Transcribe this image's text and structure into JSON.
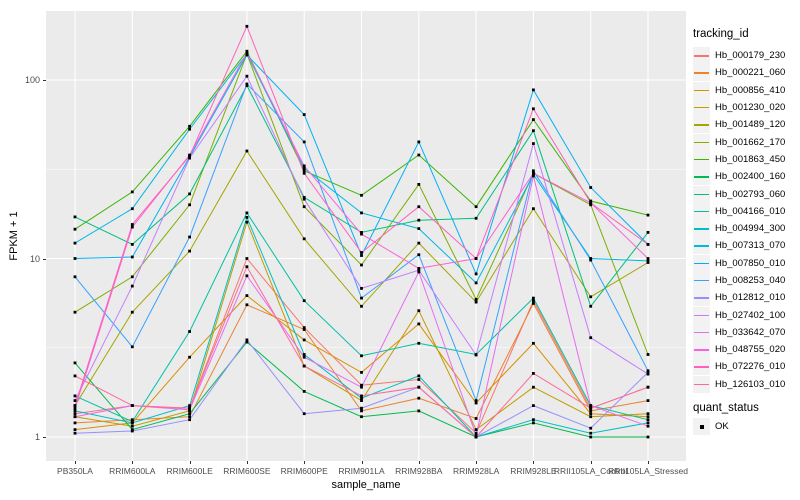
{
  "chart_data": {
    "type": "line",
    "title": "",
    "xlabel": "sample_name",
    "ylabel": "FPKM + 1",
    "y_scale": "log10",
    "y_ticks": [
      1,
      10,
      100
    ],
    "y_minor_ticks": [
      3.162,
      31.62
    ],
    "ylim": [
      0.73,
      240
    ],
    "grid": "on",
    "legend_position": "right",
    "point_shape": "black-square",
    "categories": [
      "PB350LA",
      "RRIM600LA",
      "RRIM600LE",
      "RRIM600SE",
      "RRIM600PE",
      "RRIM901LA",
      "RRIM928BA",
      "RRIM928LA",
      "RRIM928LE",
      "RRII105LA_Control",
      "RRII105LA_Stressed"
    ],
    "series": [
      {
        "name": "Hb_000179_230",
        "color": "#F8766D",
        "values": [
          1.35,
          1.5,
          1.45,
          10,
          4.1,
          1.95,
          2.1,
          1.05,
          5.8,
          1.45,
          1.9
        ]
      },
      {
        "name": "Hb_000221_060",
        "color": "#EA8331",
        "values": [
          1.2,
          1.25,
          1.3,
          5.5,
          4,
          1.4,
          1.65,
          1.27,
          5.6,
          1.4,
          1.6
        ]
      },
      {
        "name": "Hb_000856_410",
        "color": "#D89000",
        "values": [
          1.1,
          1.2,
          2.8,
          6.2,
          3.5,
          2.3,
          4.3,
          1.55,
          3.35,
          1.35,
          1.3
        ]
      },
      {
        "name": "Hb_001230_020",
        "color": "#C09B00",
        "values": [
          1.3,
          1.15,
          1.4,
          16,
          2.5,
          1.6,
          5.1,
          1.1,
          1.9,
          1.3,
          1.35
        ]
      },
      {
        "name": "Hb_001489_120",
        "color": "#A3A500",
        "values": [
          1.5,
          5,
          11,
          40,
          12.9,
          5.4,
          12.2,
          5.7,
          19,
          6.1,
          9.5
        ]
      },
      {
        "name": "Hb_001662_170",
        "color": "#7CAE00",
        "values": [
          5,
          7.9,
          20,
          140,
          19.5,
          9.2,
          26,
          5.9,
          30,
          20,
          2.9
        ]
      },
      {
        "name": "Hb_001863_450",
        "color": "#39B600",
        "values": [
          14.6,
          23.6,
          55,
          145,
          31,
          22.6,
          38,
          19.5,
          60,
          21,
          17.5
        ]
      },
      {
        "name": "Hb_002400_160",
        "color": "#00BB4E",
        "values": [
          2.6,
          1.1,
          1.35,
          3.4,
          1.8,
          1.3,
          1.4,
          1,
          1.2,
          1,
          1
        ]
      },
      {
        "name": "Hb_002793_060",
        "color": "#00BF7D",
        "values": [
          17.1,
          12,
          23,
          93,
          22,
          14,
          16.4,
          16.8,
          52,
          5.4,
          14
        ]
      },
      {
        "name": "Hb_004166_010",
        "color": "#00C1A3",
        "values": [
          1.7,
          1.22,
          3.9,
          18,
          5.8,
          2.85,
          3.35,
          2.9,
          6,
          1.5,
          1.25
        ]
      },
      {
        "name": "Hb_004994_300",
        "color": "#00BFC4",
        "values": [
          1.4,
          1.2,
          1.5,
          17,
          2.9,
          1.65,
          2.2,
          1,
          1.25,
          1.05,
          1.2
        ]
      },
      {
        "name": "Hb_007313_070",
        "color": "#00BAE0",
        "values": [
          12.2,
          19,
          53,
          140,
          32,
          18,
          14.7,
          7.3,
          29.5,
          10,
          9.7
        ]
      },
      {
        "name": "Hb_007850_010",
        "color": "#00B0F6",
        "values": [
          10,
          10.2,
          37,
          138,
          64,
          10.4,
          45,
          8.2,
          88,
          25,
          12
        ]
      },
      {
        "name": "Hb_008253_040",
        "color": "#35A2FF",
        "values": [
          7.9,
          3.2,
          13.2,
          95,
          45,
          6,
          10.5,
          1.6,
          31,
          9.8,
          2.35
        ]
      },
      {
        "name": "Hb_012812_010",
        "color": "#9590FF",
        "values": [
          1.05,
          1.08,
          1.25,
          3.5,
          1.35,
          1.45,
          1.9,
          1,
          1.5,
          1.12,
          2.3
        ]
      },
      {
        "name": "Hb_027402_100",
        "color": "#C77CFF",
        "values": [
          1.6,
          7,
          36.5,
          105,
          21.5,
          6.8,
          8.6,
          2.88,
          44,
          3.6,
          2.25
        ]
      },
      {
        "name": "Hb_033642_070",
        "color": "#E76BF3",
        "values": [
          1.3,
          1.5,
          1.42,
          8,
          2.8,
          1.9,
          8.4,
          1.02,
          29,
          1.5,
          1.15
        ]
      },
      {
        "name": "Hb_048755_020",
        "color": "#FA62DB",
        "values": [
          1.45,
          15,
          38,
          142,
          33,
          13.7,
          8.8,
          10,
          30,
          20.5,
          10
        ]
      },
      {
        "name": "Hb_072276_010",
        "color": "#FF62BC",
        "values": [
          1.5,
          15.5,
          37.5,
          200,
          30,
          10.8,
          19.5,
          10,
          69,
          20.5,
          12
        ]
      },
      {
        "name": "Hb_126103_010",
        "color": "#FF6A98",
        "values": [
          2.2,
          1.5,
          1.45,
          9,
          2.5,
          1.7,
          1.9,
          1,
          2.27,
          1.45,
          1.9
        ]
      }
    ]
  },
  "legend": {
    "title": "tracking_id"
  },
  "legend2": {
    "title": "quant_status",
    "items": [
      "OK"
    ]
  },
  "style": {
    "panel_background": "#EBEBEB",
    "gridline_color": "#FFFFFF",
    "tick_text_color": "#4D4D4D",
    "point_color": "#000000",
    "legend_key_background": "#F2F2F2"
  }
}
